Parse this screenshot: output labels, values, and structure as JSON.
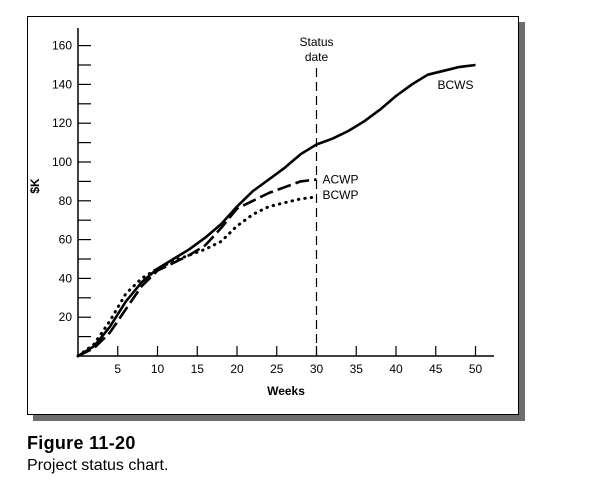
{
  "figure": {
    "title": "Figure 11-20",
    "caption": "Project status chart."
  },
  "colors": {
    "ink": "#000000",
    "shadow": "#6e6e6e",
    "background": "#ffffff"
  },
  "chart_data": {
    "type": "line",
    "xlabel": "Weeks",
    "ylabel": "$K",
    "xlim": [
      0,
      50
    ],
    "ylim": [
      0,
      160
    ],
    "xticks": [
      5,
      10,
      15,
      20,
      25,
      30,
      35,
      40,
      45,
      50
    ],
    "yticks": [
      20,
      40,
      60,
      80,
      100,
      120,
      140,
      160
    ],
    "grid": false,
    "legend": "inline labels at line ends",
    "status_date": {
      "x": 30,
      "label_line1": "Status",
      "label_line2": "date"
    },
    "series": [
      {
        "name": "BCWS",
        "style": "solid",
        "points": [
          [
            0,
            0
          ],
          [
            2,
            5
          ],
          [
            4,
            15
          ],
          [
            6,
            28
          ],
          [
            8,
            38
          ],
          [
            10,
            45
          ],
          [
            12,
            50
          ],
          [
            14,
            55
          ],
          [
            16,
            61
          ],
          [
            18,
            68
          ],
          [
            20,
            77
          ],
          [
            22,
            85
          ],
          [
            24,
            91
          ],
          [
            26,
            97
          ],
          [
            28,
            104
          ],
          [
            30,
            109
          ],
          [
            32,
            112
          ],
          [
            34,
            116
          ],
          [
            36,
            121
          ],
          [
            38,
            127
          ],
          [
            40,
            134
          ],
          [
            42,
            140
          ],
          [
            44,
            145
          ],
          [
            46,
            147
          ],
          [
            48,
            149
          ],
          [
            50,
            150
          ]
        ]
      },
      {
        "name": "ACWP",
        "style": "dashed",
        "points": [
          [
            0,
            0
          ],
          [
            2,
            4
          ],
          [
            4,
            12
          ],
          [
            6,
            24
          ],
          [
            8,
            36
          ],
          [
            10,
            44
          ],
          [
            12,
            48
          ],
          [
            14,
            52
          ],
          [
            16,
            57
          ],
          [
            18,
            66
          ],
          [
            20,
            76
          ],
          [
            22,
            80
          ],
          [
            24,
            84
          ],
          [
            26,
            87
          ],
          [
            28,
            90
          ],
          [
            30,
            91
          ]
        ]
      },
      {
        "name": "BCWP",
        "style": "dotted",
        "points": [
          [
            0,
            0
          ],
          [
            2,
            6
          ],
          [
            4,
            18
          ],
          [
            6,
            32
          ],
          [
            8,
            40
          ],
          [
            10,
            45
          ],
          [
            12,
            49
          ],
          [
            14,
            52
          ],
          [
            16,
            55
          ],
          [
            18,
            59
          ],
          [
            20,
            67
          ],
          [
            22,
            73
          ],
          [
            24,
            77
          ],
          [
            26,
            79
          ],
          [
            28,
            81
          ],
          [
            30,
            82
          ]
        ]
      }
    ]
  }
}
